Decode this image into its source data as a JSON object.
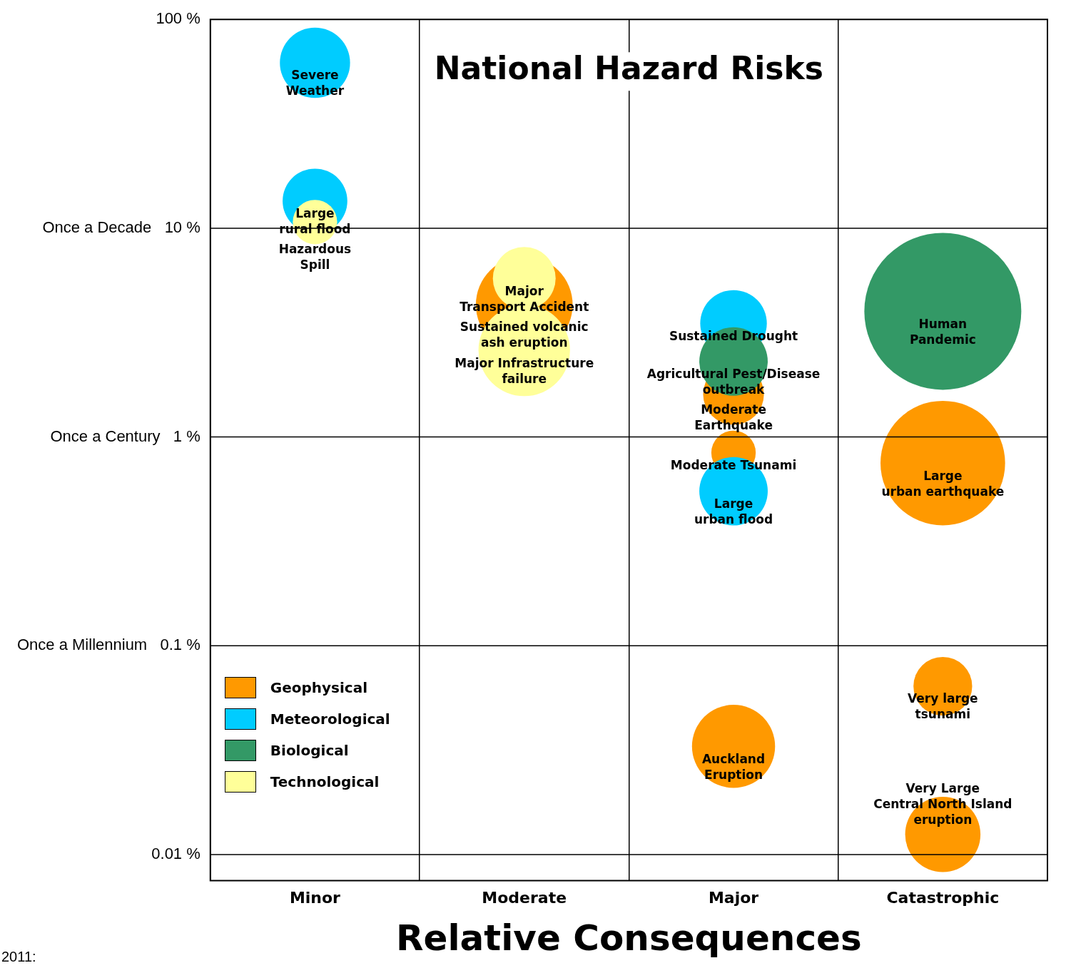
{
  "chart_data": {
    "type": "bubble",
    "title": "National Hazard Risks",
    "xlabel": "Relative Consequences",
    "categories": [
      "Minor",
      "Moderate",
      "Major",
      "Catastrophic"
    ],
    "ylim": [
      0.0075,
      100
    ],
    "log": "y",
    "yticks": [
      {
        "value": 100,
        "label": "100 %"
      },
      {
        "value": 10,
        "label": "Once a Decade   10 %"
      },
      {
        "value": 1,
        "label": "Once a Century   1 %"
      },
      {
        "value": 0.1,
        "label": "Once a Millennium   0.1 %"
      },
      {
        "value": 0.01,
        "label": "0.01 %"
      }
    ],
    "grid": "x",
    "legend": "bottom left",
    "ref_lines": [
      {
        "axis": "y",
        "value": 10
      },
      {
        "axis": "y",
        "value": 1
      },
      {
        "axis": "y",
        "value": 0.1
      },
      {
        "axis": "y",
        "value": 0.01
      }
    ],
    "series": [
      {
        "name": "Geophysical",
        "color": "#ff9900",
        "x": [
          "Moderate",
          "Catastrophic",
          "Major",
          "Major",
          "Catastrophic",
          "Major",
          "Catastrophic"
        ],
        "values": [
          4.3,
          0.75,
          1.6,
          0.84,
          0.064,
          0.033,
          0.0125
        ],
        "sizes": [
          0.38,
          0.63,
          0.15,
          0.08,
          0.14,
          0.28,
          0.23
        ]
      },
      {
        "name": "Meteorological",
        "color": "#00ccff",
        "x": [
          "Minor",
          "Minor",
          "Major",
          "Major"
        ],
        "values": [
          62,
          13.5,
          3.5,
          0.55
        ],
        "sizes": [
          0.2,
          0.17,
          0.18,
          0.19
        ]
      },
      {
        "name": "Biological",
        "color": "#339966",
        "x": [
          "Catastrophic",
          "Major"
        ],
        "values": [
          4,
          2.3
        ],
        "sizes": [
          1,
          0.19
        ]
      },
      {
        "name": "Technological",
        "color": "#ffff99",
        "x": [
          "Minor",
          "Moderate",
          "Moderate"
        ],
        "values": [
          10.7,
          5.75,
          2.6
        ],
        "sizes": [
          0.08,
          0.16,
          0.34
        ]
      }
    ],
    "annotations": [
      {
        "text": "Severe\nWeather",
        "x": "Minor",
        "y": 62
      },
      {
        "text": "Large\nrural flood",
        "x": "Minor",
        "y": 13.5
      },
      {
        "text": "Hazardous\nSpill",
        "x": "Minor",
        "y": 10.7
      },
      {
        "text": "Major\nTransport Accident",
        "x": "Moderate",
        "y": 5.75
      },
      {
        "text": "Sustained volcanic\nash eruption",
        "x": "Moderate",
        "y": 4.3
      },
      {
        "text": "Major Infrastructure\nfailure",
        "x": "Moderate",
        "y": 2.6
      },
      {
        "text": "Human\nPandemic",
        "x": "Catastrophic",
        "y": 4
      },
      {
        "text": "Sustained Drought",
        "x": "Major",
        "y": 3.5
      },
      {
        "text": "Agricultural Pest/Disease\noutbreak",
        "x": "Major",
        "y": 2.3
      },
      {
        "text": "Moderate\nEarthquake",
        "x": "Major",
        "y": 1.6
      },
      {
        "text": "Large\nurban earthquake",
        "x": "Catastrophic",
        "y": 0.75
      },
      {
        "text": "Moderate Tsunami",
        "x": "Major",
        "y": 0.84
      },
      {
        "text": "Large\nurban flood",
        "x": "Major",
        "y": 0.55
      },
      {
        "text": "Very large\ntsunami",
        "x": "Catastrophic",
        "y": 0.064
      },
      {
        "text": "Auckland\nEruption",
        "x": "Major",
        "y": 0.033
      },
      {
        "text": "Very Large\nCentral North Island\neruption",
        "x": "Catastrophic",
        "y": 0.0125
      },
      "2011:"
    ]
  }
}
